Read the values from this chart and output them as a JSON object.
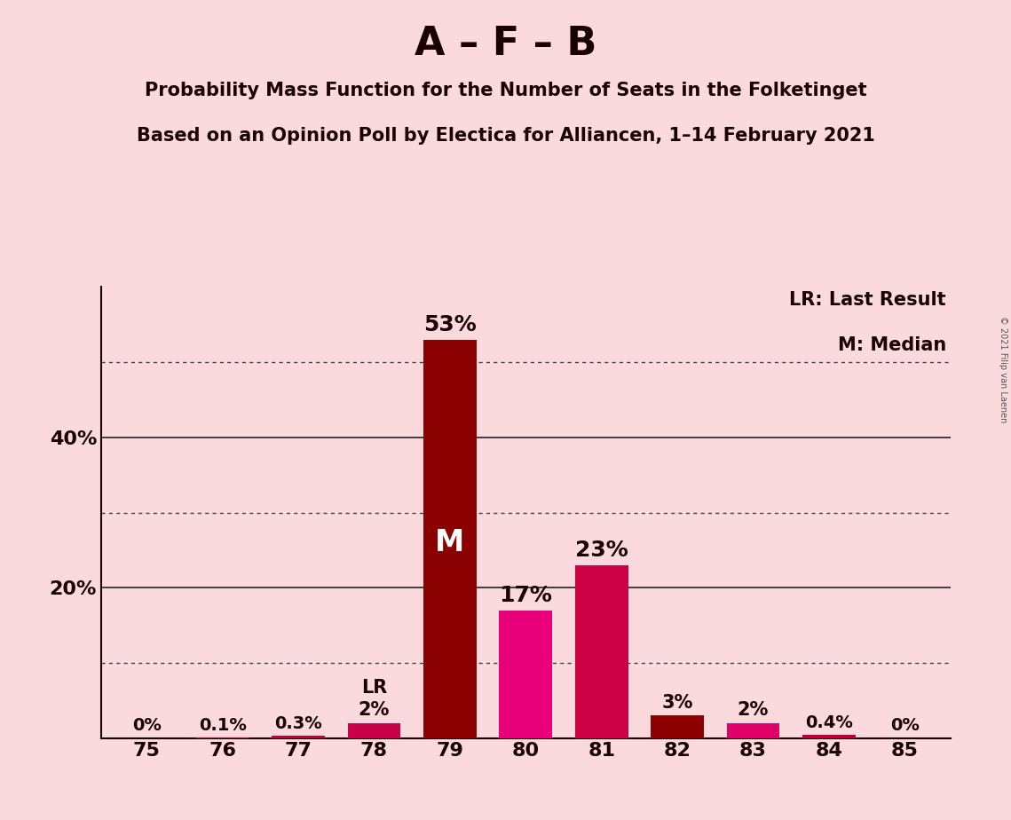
{
  "title": "A – F – B",
  "subtitle1": "Probability Mass Function for the Number of Seats in the Folketinget",
  "subtitle2": "Based on an Opinion Poll by Electica for Alliancen, 1–14 February 2021",
  "copyright": "© 2021 Filip van Laenen",
  "categories": [
    75,
    76,
    77,
    78,
    79,
    80,
    81,
    82,
    83,
    84,
    85
  ],
  "values": [
    0.0,
    0.1,
    0.3,
    2.0,
    53.0,
    17.0,
    23.0,
    3.0,
    2.0,
    0.4,
    0.0
  ],
  "bar_colors": [
    "#c0003a",
    "#c0003a",
    "#c0003a",
    "#c8004a",
    "#8b0000",
    "#e8007a",
    "#cc0044",
    "#8b0000",
    "#e0006a",
    "#c0003a",
    "#c0003a"
  ],
  "label_texts": [
    "0%",
    "0.1%",
    "0.3%",
    "2%",
    "53%",
    "17%",
    "23%",
    "3%",
    "2%",
    "0.4%",
    "0%"
  ],
  "background_color": "#fadadd",
  "yticks": [
    20,
    40
  ],
  "ytick_labels": [
    "20%",
    "40%"
  ],
  "ylim": [
    0,
    60
  ],
  "median_bar": 79,
  "last_result_bar": 78,
  "legend_lr": "LR: Last Result",
  "legend_m": "M: Median",
  "dotted_lines": [
    10,
    30,
    50
  ],
  "solid_lines": [
    20,
    40
  ],
  "title_fontsize": 32,
  "subtitle_fontsize": 15,
  "label_fontsize_large": 18,
  "label_fontsize_small": 14,
  "tick_fontsize": 16,
  "legend_fontsize": 15
}
